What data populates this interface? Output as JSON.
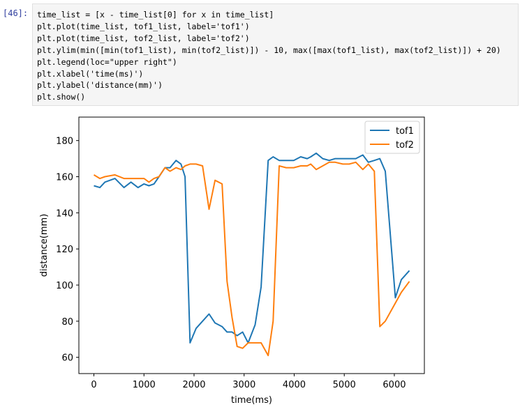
{
  "cell": {
    "prompt": "[46]:",
    "lines": [
      "time_list = [x - time_list[0] for x in time_list]",
      "plt.plot(time_list, tof1_list, label='tof1')",
      "plt.plot(time_list, tof2_list, label='tof2')",
      "plt.ylim(min([min(tof1_list), min(tof2_list)]) - 10, max([max(tof1_list), max(tof2_list)]) + 20)",
      "plt.legend(loc=\"upper right\")",
      "plt.xlabel('time(ms)')",
      "plt.ylabel('distance(mm)')",
      "plt.show()"
    ]
  },
  "chart_data": {
    "type": "line",
    "xlabel": "time(ms)",
    "ylabel": "distance(mm)",
    "xlim": [
      -300,
      6600
    ],
    "ylim": [
      51,
      193
    ],
    "xticks": [
      0,
      1000,
      2000,
      3000,
      4000,
      5000,
      6000
    ],
    "yticks": [
      60,
      80,
      100,
      120,
      140,
      160,
      180
    ],
    "legend_loc": "upper right",
    "series": [
      {
        "name": "tof1",
        "color": "#1f77b4",
        "x": [
          0,
          120,
          220,
          420,
          600,
          740,
          880,
          1000,
          1100,
          1200,
          1300,
          1420,
          1520,
          1640,
          1740,
          1820,
          1920,
          2040,
          2170,
          2300,
          2420,
          2560,
          2660,
          2760,
          2860,
          2970,
          3080,
          3220,
          3340,
          3480,
          3580,
          3700,
          3840,
          3990,
          4130,
          4260,
          4330,
          4440,
          4570,
          4700,
          4820,
          4970,
          5100,
          5230,
          5370,
          5480,
          5600,
          5710,
          5820,
          6020,
          6140,
          6300
        ],
        "y": [
          155,
          154,
          157,
          159,
          154,
          157,
          154,
          156,
          155,
          156,
          160,
          165,
          165,
          169,
          167,
          160,
          68,
          76,
          80,
          84,
          79,
          77,
          74,
          74,
          72,
          74,
          68,
          78,
          99,
          169,
          171,
          169,
          169,
          169,
          171,
          170,
          171,
          173,
          170,
          169,
          170,
          170,
          170,
          170,
          172,
          168,
          169,
          170,
          163,
          93,
          103,
          108
        ]
      },
      {
        "name": "tof2",
        "color": "#ff7f0e",
        "x": [
          0,
          120,
          220,
          420,
          600,
          740,
          880,
          1000,
          1100,
          1200,
          1300,
          1420,
          1520,
          1640,
          1740,
          1820,
          1920,
          2040,
          2170,
          2300,
          2420,
          2560,
          2660,
          2760,
          2860,
          2970,
          3080,
          3220,
          3340,
          3480,
          3580,
          3700,
          3840,
          3990,
          4130,
          4260,
          4330,
          4440,
          4570,
          4700,
          4820,
          4970,
          5100,
          5230,
          5370,
          5480,
          5600,
          5710,
          5820,
          6020,
          6140,
          6300
        ],
        "y": [
          161,
          159,
          160,
          161,
          159,
          159,
          159,
          159,
          157,
          159,
          160,
          165,
          163,
          165,
          164,
          166,
          167,
          167,
          166,
          142,
          158,
          156,
          102,
          82,
          66,
          65,
          68,
          68,
          68,
          61,
          80,
          166,
          165,
          165,
          166,
          166,
          167,
          164,
          166,
          168,
          168,
          167,
          167,
          168,
          164,
          167,
          163,
          77,
          80,
          90,
          96,
          102
        ]
      }
    ]
  }
}
